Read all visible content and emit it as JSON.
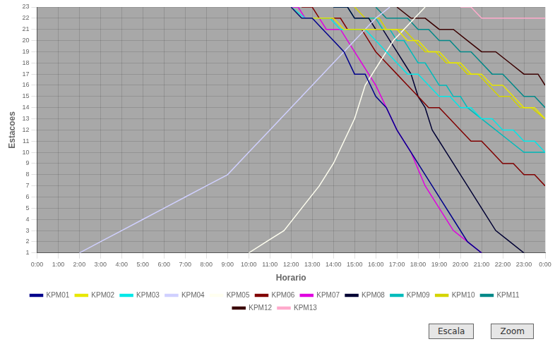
{
  "chart_data": {
    "type": "line",
    "xlabel": "Horario",
    "ylabel": "Estacoes",
    "xlim": [
      0,
      1440
    ],
    "ylim": [
      1,
      23
    ],
    "xticks": [
      {
        "value": 0,
        "label": "0:00"
      },
      {
        "value": 60,
        "label": "1:00"
      },
      {
        "value": 120,
        "label": "2:00"
      },
      {
        "value": 180,
        "label": "3:00"
      },
      {
        "value": 240,
        "label": "4:00"
      },
      {
        "value": 300,
        "label": "5:00"
      },
      {
        "value": 360,
        "label": "6:00"
      },
      {
        "value": 420,
        "label": "7:00"
      },
      {
        "value": 480,
        "label": "8:00"
      },
      {
        "value": 540,
        "label": "9:00"
      },
      {
        "value": 600,
        "label": "10:00"
      },
      {
        "value": 660,
        "label": "11:00"
      },
      {
        "value": 720,
        "label": "12:00"
      },
      {
        "value": 780,
        "label": "13:00"
      },
      {
        "value": 840,
        "label": "14:00"
      },
      {
        "value": 900,
        "label": "15:00"
      },
      {
        "value": 960,
        "label": "16:00"
      },
      {
        "value": 1020,
        "label": "17:00"
      },
      {
        "value": 1080,
        "label": "18:00"
      },
      {
        "value": 1140,
        "label": "19:00"
      },
      {
        "value": 1200,
        "label": "20:00"
      },
      {
        "value": 1260,
        "label": "21:00"
      },
      {
        "value": 1320,
        "label": "22:00"
      },
      {
        "value": 1380,
        "label": "23:00"
      },
      {
        "value": 1440,
        "label": "0:00"
      }
    ],
    "yticks": [
      1,
      2,
      3,
      4,
      5,
      6,
      7,
      8,
      9,
      10,
      11,
      12,
      13,
      14,
      15,
      16,
      17,
      18,
      19,
      20,
      21,
      22,
      23
    ],
    "grid": true,
    "legend": "bottom",
    "annotations": [
      "Escala",
      "Zoom"
    ],
    "series": [
      {
        "name": "KPM01",
        "color": "#00008B",
        "x": [
          720,
          750,
          780,
          810,
          840,
          870,
          900,
          930,
          960,
          990,
          1020,
          1060,
          1100,
          1140,
          1180,
          1220,
          1260
        ],
        "values": [
          23,
          22,
          22,
          21,
          20,
          19,
          17,
          17,
          15,
          14,
          12,
          10,
          8,
          6,
          4,
          2,
          1
        ]
      },
      {
        "name": "KPM02",
        "color": "#e8e800",
        "x": [
          720,
          750,
          780,
          810,
          840,
          870,
          900,
          930,
          960,
          990,
          1020,
          1050,
          1080,
          1110,
          1140,
          1170,
          1200,
          1230,
          1260,
          1290,
          1320,
          1350,
          1380,
          1410,
          1440
        ],
        "values": [
          23,
          22,
          22,
          22,
          22,
          21,
          21,
          21,
          21,
          21,
          21,
          20,
          20,
          19,
          19,
          18,
          18,
          17,
          17,
          16,
          16,
          15,
          14,
          14,
          13
        ]
      },
      {
        "name": "KPM03",
        "color": "#00e8e8",
        "x": [
          720,
          760,
          800,
          830,
          860,
          890,
          910,
          930,
          960,
          990,
          1020,
          1050,
          1080,
          1110,
          1140,
          1170,
          1200,
          1230,
          1260,
          1290,
          1320,
          1350,
          1380,
          1410,
          1440
        ],
        "values": [
          23,
          22,
          22,
          22,
          21,
          21,
          21,
          21,
          20,
          19,
          18,
          17,
          17,
          16,
          15,
          15,
          14,
          14,
          13,
          13,
          12,
          12,
          11,
          11,
          10
        ]
      },
      {
        "name": "KPM04",
        "color": "#d0d0ff",
        "x": [
          120,
          180,
          240,
          300,
          360,
          420,
          480,
          540,
          600,
          660,
          720,
          780,
          840,
          900,
          960,
          1000
        ],
        "values": [
          1,
          2,
          3,
          4,
          5,
          6,
          7,
          8,
          10,
          12,
          14,
          16,
          18,
          20,
          22,
          23
        ]
      },
      {
        "name": "KPM05",
        "color": "#fffff0",
        "x": [
          600,
          650,
          700,
          750,
          800,
          840,
          870,
          900,
          930,
          950,
          970,
          990,
          1010,
          1040,
          1070,
          1100
        ],
        "values": [
          1,
          2,
          3,
          5,
          7,
          9,
          11,
          13,
          16,
          17,
          18,
          19,
          20,
          21,
          22,
          23
        ]
      },
      {
        "name": "KPM06",
        "color": "#800000",
        "x": [
          750,
          780,
          800,
          820,
          840,
          860,
          880,
          900,
          920,
          940,
          960,
          990,
          1020,
          1050,
          1080,
          1110,
          1140,
          1170,
          1200,
          1230,
          1260,
          1290,
          1320,
          1350,
          1380,
          1410,
          1440
        ],
        "values": [
          23,
          23,
          22,
          22,
          22,
          22,
          21,
          21,
          21,
          20,
          19,
          18,
          17,
          16,
          15,
          14,
          14,
          13,
          12,
          11,
          11,
          10,
          9,
          9,
          8,
          8,
          7
        ]
      },
      {
        "name": "KPM07",
        "color": "#e000e0",
        "x": [
          720,
          740,
          760,
          780,
          800,
          820,
          840,
          860,
          880,
          900,
          920,
          940,
          960,
          990,
          1020,
          1060,
          1100,
          1140,
          1180,
          1220,
          1260
        ],
        "values": [
          23,
          23,
          22,
          22,
          22,
          21,
          21,
          21,
          20,
          19,
          18,
          17,
          16,
          14,
          12,
          10,
          7,
          5,
          3,
          2,
          1
        ]
      },
      {
        "name": "KPM08",
        "color": "#000033",
        "x": [
          840,
          860,
          880,
          900,
          920,
          940,
          960,
          980,
          1000,
          1020,
          1040,
          1060,
          1080,
          1100,
          1120,
          1140,
          1160,
          1180,
          1200,
          1220,
          1260,
          1300,
          1340,
          1380
        ],
        "values": [
          23,
          23,
          23,
          22,
          22,
          22,
          21,
          21,
          20,
          19,
          18,
          17,
          15,
          14,
          12,
          11,
          10,
          9,
          8,
          7,
          5,
          3,
          2,
          1
        ]
      },
      {
        "name": "KPM09",
        "color": "#00bbbb",
        "x": [
          840,
          860,
          880,
          900,
          920,
          940,
          960,
          980,
          1000,
          1020,
          1040,
          1060,
          1080,
          1100,
          1120,
          1140,
          1160,
          1180,
          1200,
          1220,
          1260,
          1300,
          1340,
          1380,
          1420,
          1440
        ],
        "values": [
          23,
          23,
          23,
          22,
          22,
          22,
          22,
          21,
          21,
          20,
          20,
          19,
          18,
          18,
          17,
          16,
          16,
          15,
          15,
          14,
          13,
          12,
          11,
          10,
          10,
          10
        ]
      },
      {
        "name": "KPM10",
        "color": "#d4d400",
        "x": [
          900,
          930,
          950,
          970,
          990,
          1010,
          1040,
          1070,
          1100,
          1130,
          1160,
          1190,
          1220,
          1250,
          1280,
          1310,
          1340,
          1370,
          1400,
          1440
        ],
        "values": [
          23,
          22,
          22,
          22,
          21,
          21,
          21,
          20,
          19,
          19,
          18,
          18,
          17,
          17,
          16,
          15,
          15,
          14,
          14,
          13
        ]
      },
      {
        "name": "KPM11",
        "color": "#008888",
        "x": [
          960,
          990,
          1020,
          1050,
          1080,
          1110,
          1140,
          1170,
          1200,
          1230,
          1260,
          1290,
          1320,
          1350,
          1380,
          1410,
          1440
        ],
        "values": [
          23,
          22,
          22,
          22,
          21,
          21,
          20,
          20,
          19,
          19,
          18,
          17,
          17,
          16,
          15,
          15,
          14
        ]
      },
      {
        "name": "KPM12",
        "color": "#3a0000",
        "x": [
          1020,
          1060,
          1100,
          1140,
          1180,
          1220,
          1260,
          1300,
          1340,
          1380,
          1420,
          1440
        ],
        "values": [
          23,
          22,
          22,
          21,
          21,
          20,
          19,
          19,
          18,
          17,
          17,
          16
        ]
      },
      {
        "name": "KPM13",
        "color": "#ffaacc",
        "x": [
          1200,
          1230,
          1260,
          1290,
          1320,
          1350,
          1380,
          1410,
          1440
        ],
        "values": [
          23,
          23,
          22,
          22,
          22,
          22,
          22,
          22,
          22
        ]
      }
    ]
  }
}
